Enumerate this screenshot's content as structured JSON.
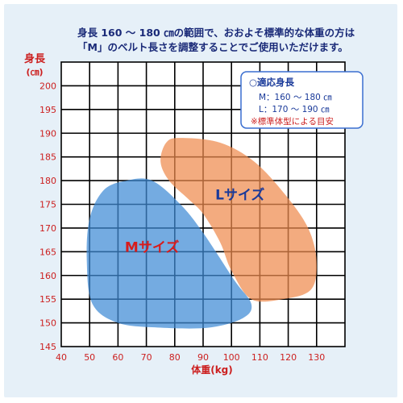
{
  "header": {
    "line1": "身長 160 ～ 180 ㎝の範囲で、おおよそ標準的な体重の方は",
    "line2": "「M」のベルト長さを調整することでご使用いただけます。"
  },
  "colors": {
    "frame_bg": "#e6f0f8",
    "grid": "#000000",
    "axis_label": "#cc1f1f",
    "tick_label": "#cc1f1f",
    "header_text": "#1a2a78",
    "m_region": "#3e8ad6",
    "l_region": "#ef8a4e",
    "m_label": "#d81c1c",
    "l_label": "#1a3a9a",
    "legend_border": "#3a6ed0"
  },
  "chart_data": {
    "type": "scatter",
    "title": "",
    "xlabel": "体重(kg)",
    "ylabel_line1": "身長",
    "ylabel_line2": "(㎝)",
    "xlim": [
      40,
      140
    ],
    "ylim": [
      145,
      205
    ],
    "x_ticks": [
      40,
      50,
      60,
      70,
      80,
      90,
      100,
      110,
      120,
      130
    ],
    "y_ticks": [
      145,
      150,
      155,
      160,
      165,
      170,
      175,
      180,
      185,
      190,
      195,
      200
    ],
    "grid": true,
    "regions": [
      {
        "name": "Mサイズ",
        "label": "Mサイズ",
        "label_at": [
          72,
          165
        ],
        "color": "#3e8ad6",
        "outline": [
          [
            63,
            180
          ],
          [
            72,
            180
          ],
          [
            82,
            175
          ],
          [
            90,
            169
          ],
          [
            101,
            159
          ],
          [
            107,
            154
          ],
          [
            104,
            151
          ],
          [
            92,
            149
          ],
          [
            75,
            149
          ],
          [
            60,
            150
          ],
          [
            51,
            154
          ],
          [
            49,
            163
          ],
          [
            50,
            172
          ],
          [
            55,
            178
          ]
        ]
      },
      {
        "name": "Lサイズ",
        "label": "Lサイズ",
        "label_at": [
          103,
          176
        ],
        "color": "#ef8a4e",
        "outline": [
          [
            82,
            189
          ],
          [
            96,
            188
          ],
          [
            108,
            184
          ],
          [
            119,
            177
          ],
          [
            127,
            170
          ],
          [
            130,
            163
          ],
          [
            128,
            157
          ],
          [
            118,
            155
          ],
          [
            107,
            155
          ],
          [
            100,
            161
          ],
          [
            96,
            167
          ],
          [
            90,
            173
          ],
          [
            85,
            176
          ],
          [
            78,
            180
          ],
          [
            75,
            184
          ],
          [
            77,
            188
          ]
        ]
      }
    ],
    "legend": {
      "position": "top-right",
      "title": "○適応身長",
      "items": [
        "M：160 ～ 180 ㎝",
        "L：170 ～ 190 ㎝"
      ],
      "note": "※標準体型による目安"
    }
  }
}
